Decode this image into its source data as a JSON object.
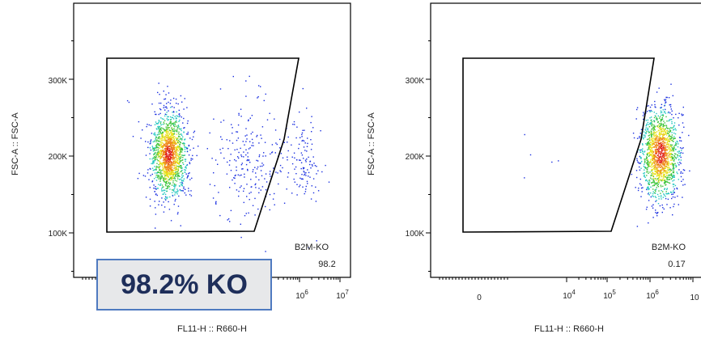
{
  "chart_data": [
    {
      "type": "scatter",
      "xlabel": "FL11-H :: R660-H",
      "ylabel": "FSC-A :: FSC-A",
      "ylim": [
        40000,
        390000
      ],
      "y_ticks": [
        "100K",
        "200K",
        "300K"
      ],
      "x_ticks": [
        "10^6",
        "10^7"
      ],
      "x_scale": "biexponential",
      "gate": {
        "name": "B2M-KO",
        "value": "98.2"
      },
      "populations": [
        {
          "x_center": 3000,
          "y_center": 195000,
          "density": "high",
          "share": "majority"
        },
        {
          "x_center": 200000,
          "y_center": 205000,
          "density": "sparse"
        },
        {
          "x_center": 3000000,
          "y_center": 200000,
          "density": "sparse"
        }
      ],
      "annotation": "98.2% KO"
    },
    {
      "type": "scatter",
      "xlabel": "FL11-H :: R660-H",
      "ylabel": "FSC-A :: FSC-A",
      "ylim": [
        40000,
        390000
      ],
      "y_ticks": [
        "100K",
        "200K",
        "300K"
      ],
      "x_ticks": [
        "0",
        "10^4",
        "10^5",
        "10^6",
        "10"
      ],
      "x_scale": "biexponential",
      "gate": {
        "name": "B2M-KO",
        "value": "0.17"
      },
      "populations": [
        {
          "x_center": 2500000,
          "y_center": 200000,
          "density": "high",
          "share": "majority"
        }
      ]
    }
  ]
}
